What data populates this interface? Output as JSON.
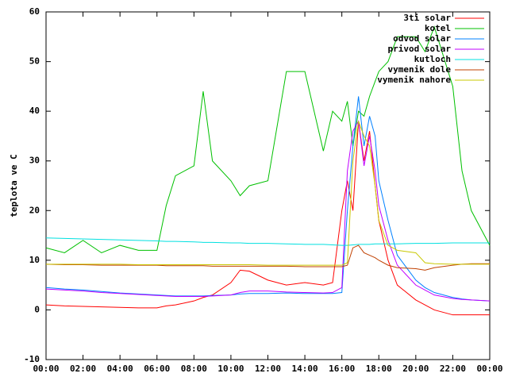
{
  "chart_data": {
    "type": "line",
    "ylabel": "teplota ve C",
    "x": [
      0,
      1,
      2,
      3,
      4,
      5,
      6,
      6.5,
      7,
      8,
      8.5,
      9,
      10,
      10.5,
      11,
      12,
      13,
      14,
      15,
      15.5,
      16,
      16.3,
      16.6,
      16.9,
      17.2,
      17.5,
      17.8,
      18,
      18.5,
      19,
      20,
      20.5,
      21,
      22,
      22.5,
      23,
      24
    ],
    "xlim": [
      0,
      24
    ],
    "xticks": [
      {
        "value": 0,
        "label": "00:00"
      },
      {
        "value": 2,
        "label": "02:00"
      },
      {
        "value": 4,
        "label": "04:00"
      },
      {
        "value": 6,
        "label": "06:00"
      },
      {
        "value": 8,
        "label": "08:00"
      },
      {
        "value": 10,
        "label": "10:00"
      },
      {
        "value": 12,
        "label": "12:00"
      },
      {
        "value": 14,
        "label": "14:00"
      },
      {
        "value": 16,
        "label": "16:00"
      },
      {
        "value": 18,
        "label": "18:00"
      },
      {
        "value": 20,
        "label": "20:00"
      },
      {
        "value": 22,
        "label": "22:00"
      },
      {
        "value": 24,
        "label": "00:00"
      }
    ],
    "ylim": [
      -10,
      60
    ],
    "yticks": [
      -10,
      0,
      10,
      20,
      30,
      40,
      50,
      60
    ],
    "legend": "top-right",
    "series": [
      {
        "name": "3ti solar",
        "color": "#ff0000",
        "values": [
          1,
          0.8,
          0.7,
          0.6,
          0.5,
          0.4,
          0.4,
          0.8,
          1,
          1.8,
          2.5,
          3,
          5.5,
          8,
          7.8,
          6,
          5,
          5.5,
          5,
          5.5,
          20,
          26,
          20,
          38,
          30,
          36,
          25,
          18,
          10,
          5,
          2,
          1,
          0,
          -1,
          -1,
          -1,
          -1
        ]
      },
      {
        "name": "kotel",
        "color": "#00c000",
        "values": [
          12.5,
          11.5,
          14,
          11.5,
          13,
          12,
          12,
          21,
          27,
          29,
          44,
          30,
          26,
          23,
          25,
          26,
          48,
          48,
          32,
          40,
          38,
          42,
          33,
          40,
          39,
          43,
          46,
          48,
          50,
          55,
          55,
          52,
          57,
          45,
          28,
          20,
          13
        ]
      },
      {
        "name": "odvod solar",
        "color": "#0080ff",
        "values": [
          4.5,
          4.2,
          4,
          3.7,
          3.4,
          3.2,
          3,
          2.9,
          2.8,
          2.8,
          2.8,
          2.9,
          3,
          3.2,
          3.3,
          3.3,
          3.4,
          3.3,
          3.3,
          3.3,
          3.5,
          20,
          33,
          43,
          33,
          39,
          35,
          26,
          18,
          11,
          6,
          4.5,
          3.5,
          2.5,
          2.2,
          2,
          1.8
        ]
      },
      {
        "name": "privod solar",
        "color": "#c000ff",
        "values": [
          4.2,
          4,
          3.8,
          3.5,
          3.3,
          3.1,
          2.9,
          2.8,
          2.7,
          2.7,
          2.7,
          2.8,
          3,
          3.5,
          3.8,
          3.8,
          3.6,
          3.5,
          3.4,
          3.5,
          4.5,
          28,
          36,
          38,
          29,
          35,
          28,
          21,
          14,
          9,
          5,
          4,
          3,
          2.3,
          2.1,
          2,
          1.8
        ]
      },
      {
        "name": "kutloch",
        "color": "#00e0e0",
        "values": [
          14.5,
          14.4,
          14.3,
          14.2,
          14.1,
          14,
          13.9,
          13.8,
          13.8,
          13.7,
          13.6,
          13.6,
          13.5,
          13.5,
          13.4,
          13.4,
          13.3,
          13.2,
          13.2,
          13.1,
          13,
          13,
          13.1,
          13.2,
          13.2,
          13.2,
          13.3,
          13.3,
          13.3,
          13.3,
          13.4,
          13.4,
          13.4,
          13.5,
          13.5,
          13.5,
          13.5
        ]
      },
      {
        "name": "vymenik dole",
        "color": "#c04000",
        "values": [
          9.2,
          9.1,
          9.1,
          9,
          9,
          9,
          9,
          8.9,
          8.9,
          8.9,
          8.9,
          8.8,
          8.8,
          8.8,
          8.8,
          8.8,
          8.8,
          8.7,
          8.7,
          8.7,
          8.7,
          9,
          12.5,
          13,
          11.5,
          11,
          10.5,
          10,
          9,
          8.5,
          8.3,
          8,
          8.5,
          9,
          9.2,
          9.3,
          9.3
        ]
      },
      {
        "name": "vymenik nahore",
        "color": "#c8c800",
        "values": [
          9.2,
          9.2,
          9.2,
          9.2,
          9.2,
          9.1,
          9.1,
          9.1,
          9.1,
          9.1,
          9.1,
          9.1,
          9.1,
          9.1,
          9.1,
          9,
          9,
          9,
          9,
          9,
          9,
          9.5,
          30,
          38,
          35,
          33,
          25,
          18,
          13,
          12,
          11.5,
          9.5,
          9.3,
          9.2,
          9.2,
          9.2,
          9.2
        ]
      }
    ]
  }
}
